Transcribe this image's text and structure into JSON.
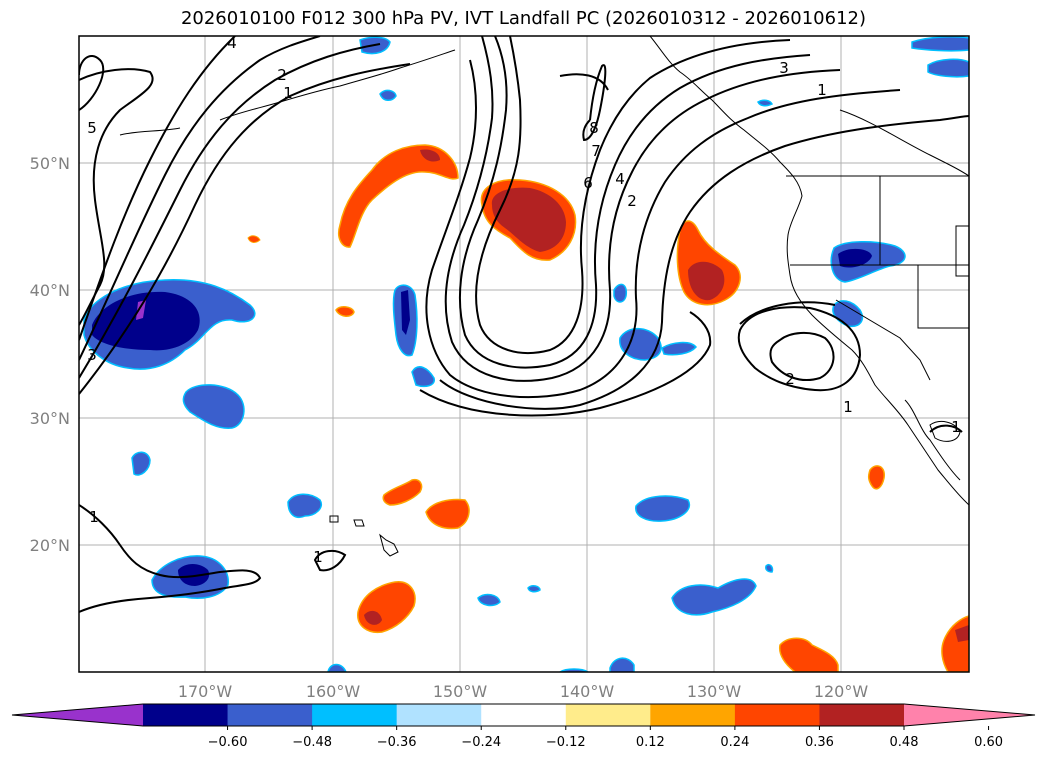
{
  "title": "2026010100 F012 300 hPa PV, IVT Landfall PC (2026010312 - 2026010612)",
  "lat_labels": [
    "50°N",
    "40°N",
    "30°N",
    "20°N"
  ],
  "lon_labels": [
    "170°W",
    "160°W",
    "150°W",
    "140°W",
    "130°W",
    "120°W"
  ],
  "colorbar": {
    "ticks": [
      "−0.60",
      "−0.48",
      "−0.36",
      "−0.24",
      "−0.12",
      "0.12",
      "0.24",
      "0.36",
      "0.48",
      "0.60"
    ],
    "colors": [
      "#9932cc",
      "#00008b",
      "#3a5fcd",
      "#00bfff",
      "#b0e2ff",
      "#ffffff",
      "#ffec8b",
      "#ffa500",
      "#ff4500",
      "#b22222",
      "#ff82ab"
    ]
  },
  "contour_labels": [
    "4",
    "2",
    "1",
    "5",
    "3",
    "8",
    "7",
    "6",
    "4",
    "2",
    "3",
    "1",
    "2",
    "1",
    "1",
    "1",
    "1"
  ]
}
